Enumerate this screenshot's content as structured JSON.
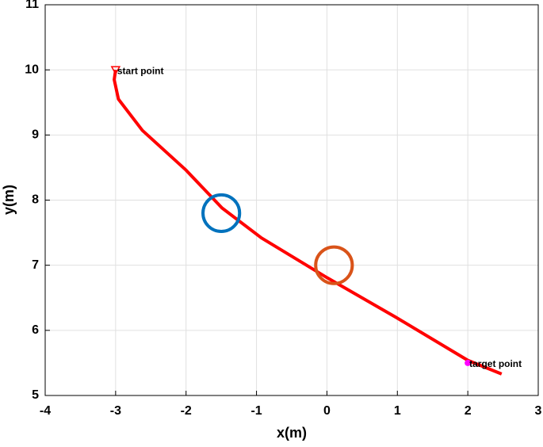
{
  "chart_data": {
    "type": "line",
    "xlabel": "x(m)",
    "ylabel": "y(m)",
    "xlim": [
      -4,
      3
    ],
    "ylim": [
      5,
      11
    ],
    "xticks": [
      -4,
      -3,
      -2,
      -1,
      0,
      1,
      2,
      3
    ],
    "yticks": [
      5,
      6,
      7,
      8,
      9,
      10,
      11
    ],
    "grid": true,
    "series": [
      {
        "color": "#ff0000",
        "x": [
          -3.0,
          -3.02,
          -2.96,
          -2.62,
          -2.0,
          -1.49,
          -0.93,
          0.0,
          0.98,
          2.0,
          2.48
        ],
        "values": [
          10.0,
          9.85,
          9.55,
          9.07,
          8.46,
          7.88,
          7.42,
          6.81,
          6.2,
          5.54,
          5.33
        ]
      }
    ],
    "obstacles": [
      {
        "x": -1.5,
        "y": 7.8,
        "r": 0.26,
        "color": "#0072bd"
      },
      {
        "x": 0.1,
        "y": 7.0,
        "r": 0.26,
        "color": "#d95319"
      }
    ],
    "markers": [
      {
        "x": -3,
        "y": 10,
        "label": "start point",
        "color": "#ff0000"
      },
      {
        "x": 2,
        "y": 5.5,
        "label": "target point",
        "color": "#ff00ff"
      }
    ]
  }
}
